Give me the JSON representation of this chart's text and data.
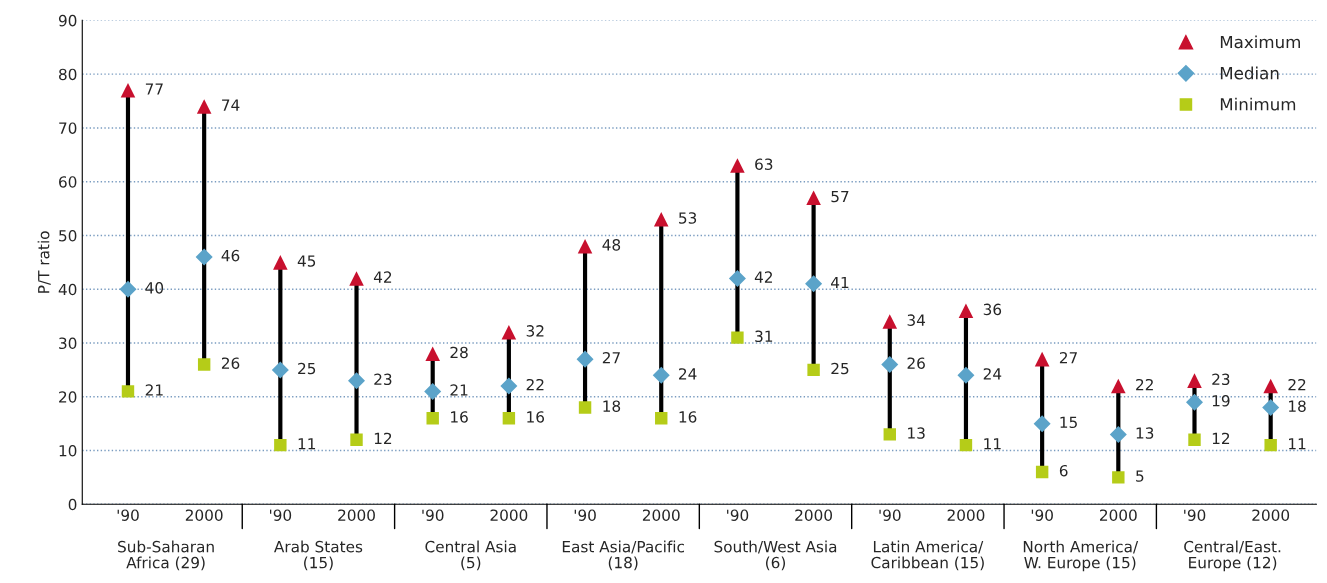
{
  "chart_data": {
    "type": "scatter",
    "ylabel": "P/T ratio",
    "categories": [
      "'90",
      "2000",
      "'90",
      "2000",
      "'90",
      "2000",
      "'90",
      "2000",
      "'90",
      "2000",
      "'90",
      "2000",
      "'90",
      "2000",
      "'90",
      "2000"
    ],
    "annotations": [
      "Sub-Saharan\nAfrica (29)",
      "Arab States\n(15)",
      "Central Asia\n(5)",
      "East Asia/Pacific\n(18)",
      "South/West Asia\n(6)",
      "Latin America/\nCaribbean (15)",
      "North America/\nW. Europe (15)",
      "Central/East.\nEurope (12)"
    ],
    "series": [
      {
        "name": "Maximum",
        "color": "#c8102e",
        "marker": "triangle",
        "values": [
          77,
          74,
          45,
          42,
          28,
          32,
          48,
          53,
          63,
          57,
          34,
          36,
          27,
          22,
          23,
          22
        ]
      },
      {
        "name": "Median",
        "color": "#5ba3c9",
        "marker": "diamond",
        "values": [
          40,
          46,
          25,
          23,
          21,
          22,
          27,
          24,
          42,
          41,
          26,
          24,
          15,
          13,
          19,
          18
        ]
      },
      {
        "name": "Minimum",
        "color": "#b5cc18",
        "marker": "square",
        "values": [
          21,
          26,
          11,
          12,
          16,
          16,
          18,
          16,
          31,
          25,
          13,
          11,
          6,
          5,
          12,
          11
        ]
      }
    ],
    "ylim": [
      0,
      90
    ],
    "yticks": [
      0,
      10,
      20,
      30,
      40,
      50,
      60,
      70,
      80,
      90
    ],
    "grid": "y",
    "legend": "top right",
    "data_labels": true
  }
}
